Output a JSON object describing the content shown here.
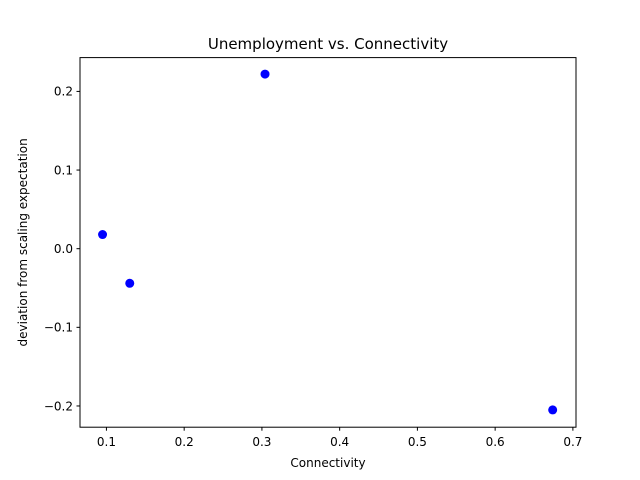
{
  "chart_data": {
    "type": "scatter",
    "title": "Unemployment vs. Connectivity",
    "xlabel": "Connectivity",
    "ylabel": "deviation from scaling expectation",
    "xlim": [
      0.066,
      0.704
    ],
    "ylim": [
      -0.227,
      0.243
    ],
    "xticks": [
      0.1,
      0.2,
      0.3,
      0.4,
      0.5,
      0.6,
      0.7
    ],
    "xtick_labels": [
      "0.1",
      "0.2",
      "0.3",
      "0.4",
      "0.5",
      "0.6",
      "0.7"
    ],
    "yticks": [
      -0.2,
      -0.1,
      0.0,
      0.1,
      0.2
    ],
    "ytick_labels": [
      "−0.2",
      "−0.1",
      "0.0",
      "0.1",
      "0.2"
    ],
    "grid": false,
    "marker_color": "#0000ff",
    "points": [
      {
        "x": 0.095,
        "y": 0.018
      },
      {
        "x": 0.13,
        "y": -0.044
      },
      {
        "x": 0.304,
        "y": 0.222
      },
      {
        "x": 0.674,
        "y": -0.205
      }
    ]
  }
}
